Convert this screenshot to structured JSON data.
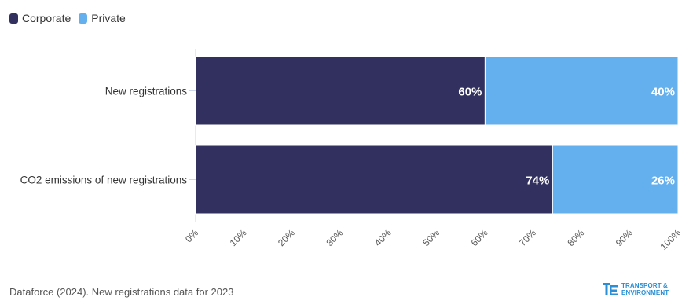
{
  "chart_data": {
    "type": "bar",
    "orientation": "horizontal",
    "stacked": true,
    "categories": [
      "New registrations",
      "CO2 emissions of new registrations"
    ],
    "series": [
      {
        "name": "Corporate",
        "values": [
          60,
          74
        ],
        "color": "#32305f",
        "labels": [
          "60%",
          "74%"
        ]
      },
      {
        "name": "Private",
        "values": [
          40,
          26
        ],
        "color": "#64b0ee",
        "labels": [
          "40%",
          "26%"
        ]
      }
    ],
    "xlim": [
      0,
      100
    ],
    "x_ticks": [
      "0%",
      "10%",
      "20%",
      "30%",
      "40%",
      "50%",
      "60%",
      "70%",
      "80%",
      "90%",
      "100%"
    ],
    "legend_position": "top-left",
    "grid": false
  },
  "footer": {
    "source": "Dataforce (2024). New registrations data for 2023",
    "logo_line1": "TRANSPORT &",
    "logo_line2": "ENVIRONMENT",
    "logo_color": "#2a8fd6"
  }
}
